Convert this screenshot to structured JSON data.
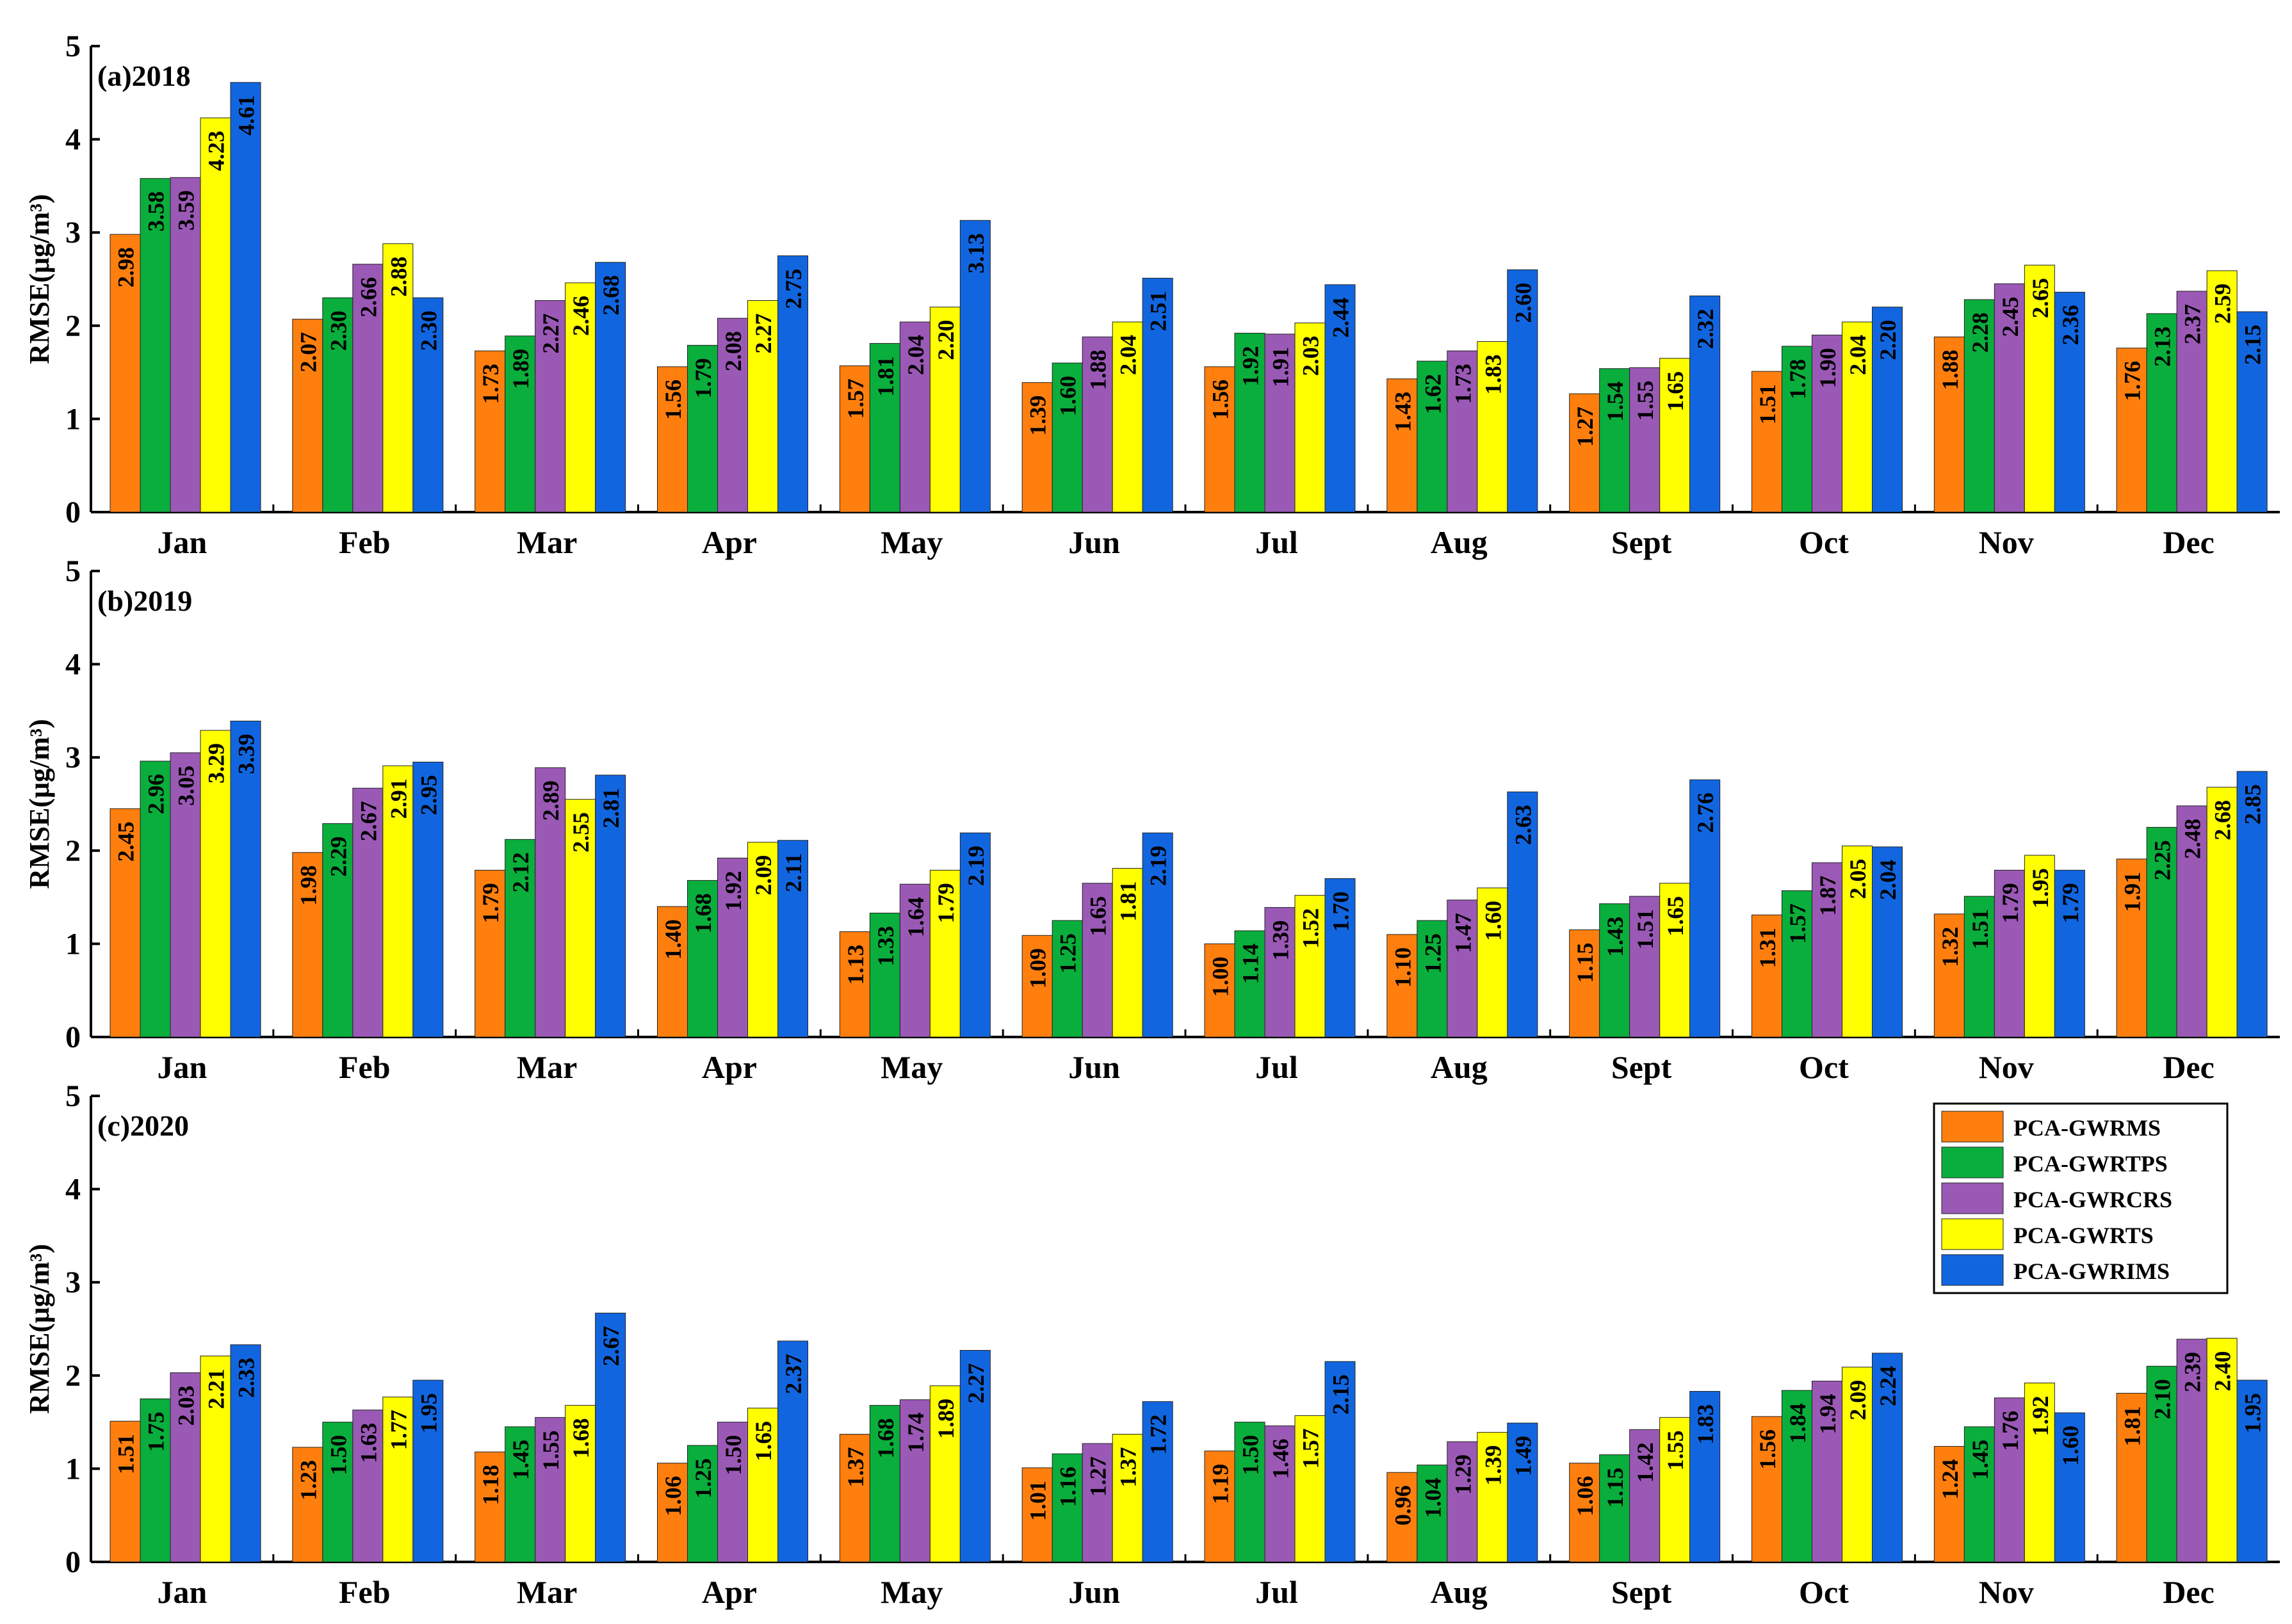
{
  "colors": {
    "PCA-GWRMS": "#FF7F0E",
    "PCA-GWRTPS": "#0AAE3C",
    "PCA-GWRCRS": "#9B59B6",
    "PCA-GWRTS": "#FFFF00",
    "PCA-GWRIMS": "#1166E0"
  },
  "legend": {
    "position": "top-right of panel (c)",
    "items": [
      "PCA-GWRMS",
      "PCA-GWRTPS",
      "PCA-GWRCRS",
      "PCA-GWRTS",
      "PCA-GWRIMS"
    ]
  },
  "chart_data": [
    {
      "type": "bar",
      "panel_label": "(a)2018",
      "ylabel": "RMSE(μg/m³)",
      "ylim": [
        0,
        5
      ],
      "yticks": [
        "0",
        "1",
        "2",
        "3",
        "4",
        "5"
      ],
      "categories": [
        "Jan",
        "Feb",
        "Mar",
        "Apr",
        "May",
        "Jun",
        "Jul",
        "Aug",
        "Sept",
        "Oct",
        "Nov",
        "Dec"
      ],
      "series": [
        {
          "name": "PCA-GWRMS",
          "values": [
            2.98,
            2.07,
            1.73,
            1.56,
            1.57,
            1.39,
            1.56,
            1.43,
            1.27,
            1.51,
            1.88,
            1.76
          ]
        },
        {
          "name": "PCA-GWRTPS",
          "values": [
            3.58,
            2.3,
            1.89,
            1.79,
            1.81,
            1.6,
            1.92,
            1.62,
            1.54,
            1.78,
            2.28,
            2.13
          ]
        },
        {
          "name": "PCA-GWRCRS",
          "values": [
            3.59,
            2.66,
            2.27,
            2.08,
            2.04,
            1.88,
            1.91,
            1.73,
            1.55,
            1.9,
            2.45,
            2.37
          ]
        },
        {
          "name": "PCA-GWRTS",
          "values": [
            4.23,
            2.88,
            2.46,
            2.27,
            2.2,
            2.04,
            2.03,
            1.83,
            1.65,
            2.04,
            2.65,
            2.59
          ]
        },
        {
          "name": "PCA-GWRIMS",
          "values": [
            4.61,
            2.3,
            2.68,
            2.75,
            3.13,
            2.51,
            2.44,
            2.6,
            2.32,
            2.2,
            2.36,
            2.15
          ]
        }
      ]
    },
    {
      "type": "bar",
      "panel_label": "(b)2019",
      "ylabel": "RMSE(μg/m³)",
      "ylim": [
        0,
        5
      ],
      "yticks": [
        "0",
        "1",
        "2",
        "3",
        "4",
        "5"
      ],
      "categories": [
        "Jan",
        "Feb",
        "Mar",
        "Apr",
        "May",
        "Jun",
        "Jul",
        "Aug",
        "Sept",
        "Oct",
        "Nov",
        "Dec"
      ],
      "series": [
        {
          "name": "PCA-GWRMS",
          "values": [
            2.45,
            1.98,
            1.79,
            1.4,
            1.13,
            1.09,
            1.0,
            1.1,
            1.15,
            1.31,
            1.32,
            1.91
          ]
        },
        {
          "name": "PCA-GWRTPS",
          "values": [
            2.96,
            2.29,
            2.12,
            1.68,
            1.33,
            1.25,
            1.14,
            1.25,
            1.43,
            1.57,
            1.51,
            2.25
          ]
        },
        {
          "name": "PCA-GWRCRS",
          "values": [
            3.05,
            2.67,
            2.89,
            1.92,
            1.64,
            1.65,
            1.39,
            1.47,
            1.51,
            1.87,
            1.79,
            2.48
          ]
        },
        {
          "name": "PCA-GWRTS",
          "values": [
            3.29,
            2.91,
            2.55,
            2.09,
            1.79,
            1.81,
            1.52,
            1.6,
            1.65,
            2.05,
            1.95,
            2.68
          ]
        },
        {
          "name": "PCA-GWRIMS",
          "values": [
            3.39,
            2.95,
            2.81,
            2.11,
            2.19,
            2.19,
            1.7,
            2.63,
            2.76,
            2.04,
            1.79,
            2.85
          ]
        }
      ]
    },
    {
      "type": "bar",
      "panel_label": "(c)2020",
      "ylabel": "RMSE(μg/m³)",
      "ylim": [
        0,
        5
      ],
      "yticks": [
        "0",
        "1",
        "2",
        "3",
        "4",
        "5"
      ],
      "categories": [
        "Jan",
        "Feb",
        "Mar",
        "Apr",
        "May",
        "Jun",
        "Jul",
        "Aug",
        "Sept",
        "Oct",
        "Nov",
        "Dec"
      ],
      "series": [
        {
          "name": "PCA-GWRMS",
          "values": [
            1.51,
            1.23,
            1.18,
            1.06,
            1.37,
            1.01,
            1.19,
            0.96,
            1.06,
            1.56,
            1.24,
            1.81
          ]
        },
        {
          "name": "PCA-GWRTPS",
          "values": [
            1.75,
            1.5,
            1.45,
            1.25,
            1.68,
            1.16,
            1.5,
            1.04,
            1.15,
            1.84,
            1.45,
            2.1
          ]
        },
        {
          "name": "PCA-GWRCRS",
          "values": [
            2.03,
            1.63,
            1.55,
            1.5,
            1.74,
            1.27,
            1.46,
            1.29,
            1.42,
            1.94,
            1.76,
            2.39
          ]
        },
        {
          "name": "PCA-GWRTS",
          "values": [
            2.21,
            1.77,
            1.68,
            1.65,
            1.89,
            1.37,
            1.57,
            1.39,
            1.55,
            2.09,
            1.92,
            2.4
          ]
        },
        {
          "name": "PCA-GWRIMS",
          "values": [
            2.33,
            1.95,
            2.67,
            2.37,
            2.27,
            1.72,
            2.15,
            1.49,
            1.83,
            2.24,
            1.6,
            1.95
          ]
        }
      ]
    }
  ]
}
